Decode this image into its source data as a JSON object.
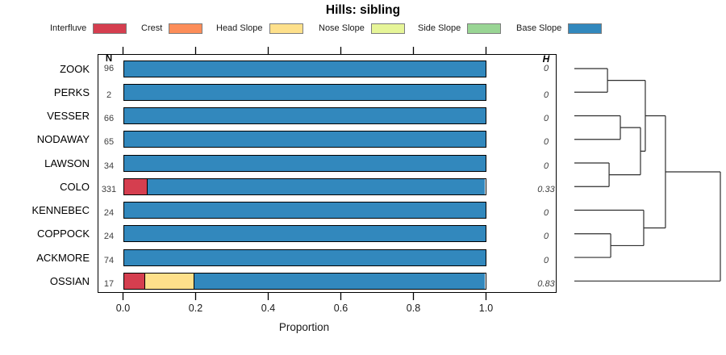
{
  "title": "Hills: sibling",
  "legend": [
    {
      "label": "Interfluve",
      "color": "#d53e4f"
    },
    {
      "label": "Crest",
      "color": "#fc8d59"
    },
    {
      "label": "Head Slope",
      "color": "#fee08b"
    },
    {
      "label": "Nose Slope",
      "color": "#e6f598"
    },
    {
      "label": "Side Slope",
      "color": "#99d594"
    },
    {
      "label": "Base Slope",
      "color": "#3288bd"
    }
  ],
  "table": {
    "n_header": "N",
    "h_header": "H"
  },
  "x_axis": {
    "label": "Proportion",
    "tick_labels": [
      "0.0",
      "0.2",
      "0.4",
      "0.6",
      "0.8",
      "1.0"
    ]
  },
  "chart_data": {
    "type": "bar",
    "subtype": "horizontal-stacked-proportions-with-dendrogram",
    "title": "Hills: sibling",
    "xlabel": "Proportion",
    "xlim": [
      0,
      1
    ],
    "x_ticks": [
      0.0,
      0.2,
      0.4,
      0.6,
      0.8,
      1.0
    ],
    "grid": false,
    "legend_position": "top",
    "categories": [
      "ZOOK",
      "PERKS",
      "VESSER",
      "NODAWAY",
      "LAWSON",
      "COLO",
      "KENNEBEC",
      "COPPOCK",
      "ACKMORE",
      "OSSIAN"
    ],
    "n_values": [
      "96",
      "2",
      "66",
      "65",
      "34",
      "331",
      "24",
      "24",
      "74",
      "17"
    ],
    "h_values": [
      "0",
      "0",
      "0",
      "0",
      "0",
      "0.33",
      "0",
      "0",
      "0",
      "0.83"
    ],
    "series": [
      {
        "name": "Interfluve",
        "color": "#d53e4f",
        "values": [
          0,
          0,
          0,
          0,
          0,
          0.065,
          0,
          0,
          0,
          0.06
        ]
      },
      {
        "name": "Crest",
        "color": "#fc8d59",
        "values": [
          0,
          0,
          0,
          0,
          0,
          0,
          0,
          0,
          0,
          0
        ]
      },
      {
        "name": "Head Slope",
        "color": "#fee08b",
        "values": [
          0,
          0,
          0,
          0,
          0,
          0,
          0,
          0,
          0,
          0.135
        ]
      },
      {
        "name": "Nose Slope",
        "color": "#e6f598",
        "values": [
          0,
          0,
          0,
          0,
          0,
          0,
          0,
          0,
          0,
          0
        ]
      },
      {
        "name": "Side Slope",
        "color": "#99d594",
        "values": [
          0,
          0,
          0,
          0,
          0,
          0,
          0,
          0,
          0,
          0
        ]
      },
      {
        "name": "Base Slope",
        "color": "#3288bd",
        "values": [
          1,
          1,
          1,
          1,
          1,
          0.935,
          1,
          1,
          1,
          0.805
        ]
      }
    ],
    "dendrogram": {
      "orientation": "right",
      "leaf_order": [
        "ZOOK",
        "PERKS",
        "VESSER",
        "NODAWAY",
        "LAWSON",
        "COLO",
        "KENNEBEC",
        "COPPOCK",
        "ACKMORE",
        "OSSIAN"
      ],
      "merges": [
        {
          "id": "m1",
          "a": "ZOOK",
          "b": "PERKS",
          "h": 0.227
        },
        {
          "id": "m2",
          "a": "VESSER",
          "b": "NODAWAY",
          "h": 0.315
        },
        {
          "id": "m3",
          "a": "LAWSON",
          "b": "COLO",
          "h": 0.238
        },
        {
          "id": "m4",
          "a": "m2",
          "b": "m3",
          "h": 0.453
        },
        {
          "id": "m5",
          "a": "m1",
          "b": "m4",
          "h": 0.486
        },
        {
          "id": "m6",
          "a": "COPPOCK",
          "b": "ACKMORE",
          "h": 0.249
        },
        {
          "id": "m7",
          "a": "KENNEBEC",
          "b": "m6",
          "h": 0.475
        },
        {
          "id": "m8",
          "a": "m5",
          "b": "m7",
          "h": 0.624
        },
        {
          "id": "root",
          "a": "m8",
          "b": "OSSIAN",
          "h": 1.0
        }
      ]
    }
  }
}
